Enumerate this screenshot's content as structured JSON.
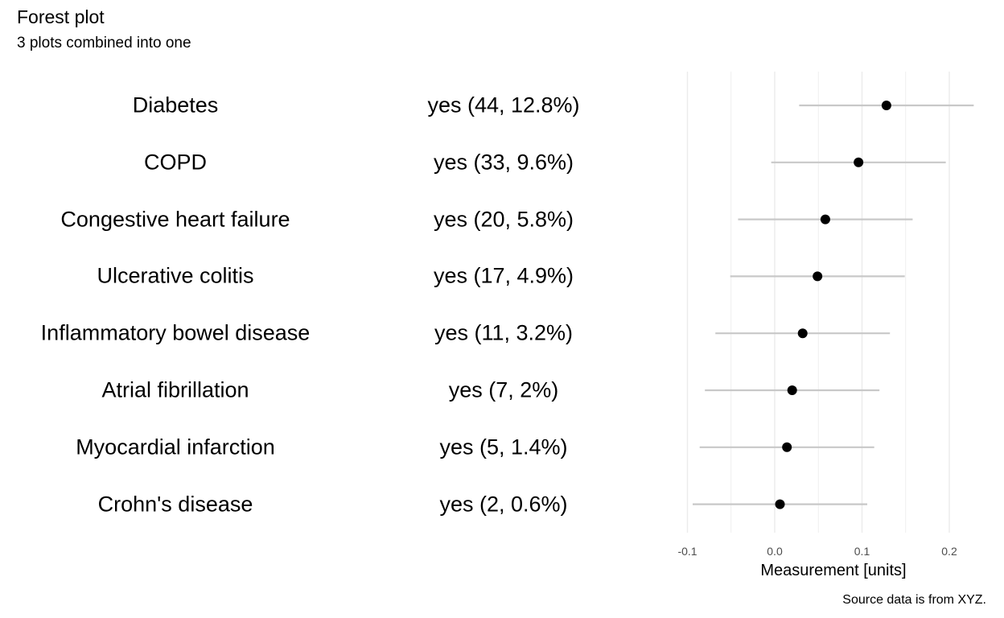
{
  "title": "Forest plot",
  "subtitle": "3 plots combined into one",
  "caption": "Source data is from XYZ.",
  "chart_data": {
    "type": "scatter",
    "subtype": "forest",
    "xlabel": "Measurement [units]",
    "xlim": [
      -0.1,
      0.23
    ],
    "xticks": [
      -0.1,
      0.0,
      0.1,
      0.2
    ],
    "xtick_labels": [
      "-0.1",
      "0.0",
      "0.1",
      "0.2"
    ],
    "grid": true,
    "rows": [
      {
        "label": "Diabetes",
        "value": "yes (44, 12.8%)",
        "estimate": 0.128,
        "lower": 0.028,
        "upper": 0.228
      },
      {
        "label": "COPD",
        "value": "yes (33, 9.6%)",
        "estimate": 0.096,
        "lower": -0.004,
        "upper": 0.196
      },
      {
        "label": "Congestive heart failure",
        "value": "yes (20, 5.8%)",
        "estimate": 0.058,
        "lower": -0.042,
        "upper": 0.158
      },
      {
        "label": "Ulcerative colitis",
        "value": "yes (17, 4.9%)",
        "estimate": 0.049,
        "lower": -0.051,
        "upper": 0.149
      },
      {
        "label": "Inflammatory bowel disease",
        "value": "yes (11, 3.2%)",
        "estimate": 0.032,
        "lower": -0.068,
        "upper": 0.132
      },
      {
        "label": "Atrial fibrillation",
        "value": "yes (7, 2%)",
        "estimate": 0.02,
        "lower": -0.08,
        "upper": 0.12
      },
      {
        "label": "Myocardial infarction",
        "value": "yes (5, 1.4%)",
        "estimate": 0.014,
        "lower": -0.086,
        "upper": 0.114
      },
      {
        "label": "Crohn's disease",
        "value": "yes (2, 0.6%)",
        "estimate": 0.006,
        "lower": -0.094,
        "upper": 0.106
      }
    ],
    "colors": {
      "point": "#000000",
      "interval": "#c8c8c8",
      "grid": "#ebebeb"
    }
  }
}
